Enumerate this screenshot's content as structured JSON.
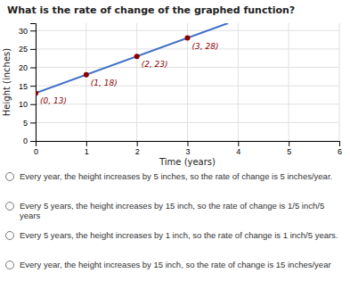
{
  "chart_data": {
    "type": "scatter",
    "title": "What is the rate of change of the graphed function?",
    "xlabel": "Time (years)",
    "ylabel": "Height (inches)",
    "xlim": [
      0,
      6
    ],
    "ylim": [
      0,
      32
    ],
    "xticks": [
      0,
      1,
      2,
      3,
      4,
      5,
      6
    ],
    "yticks": [
      0,
      5,
      10,
      15,
      20,
      25,
      30
    ],
    "grid": true,
    "data_labels": true,
    "series": [
      {
        "type": "line",
        "color": "#4070c8",
        "x": [
          0,
          3.8
        ],
        "values": [
          13,
          32
        ]
      },
      {
        "type": "scatter",
        "color": "#8b0000",
        "x": [
          0,
          1,
          2,
          3
        ],
        "values": [
          13,
          18,
          23,
          28
        ],
        "value_labels": [
          "(0, 13)",
          "(1, 18)",
          "(2, 23)",
          "(3, 28)"
        ]
      }
    ],
    "annotations": [
      "Every year, the height increases by 5 inches, so the rate of change is 5 inches/year.",
      "Every 5 years, the height increases by 15 inch, so the rate of change is 1/5 inch/5 years",
      "Every 5 years, the height increases by 1 inch, so the rate of change is 1 inch/5 years.",
      "Every year, the height increases by 15 inch, so the rate of change is 15 inches/year"
    ]
  }
}
